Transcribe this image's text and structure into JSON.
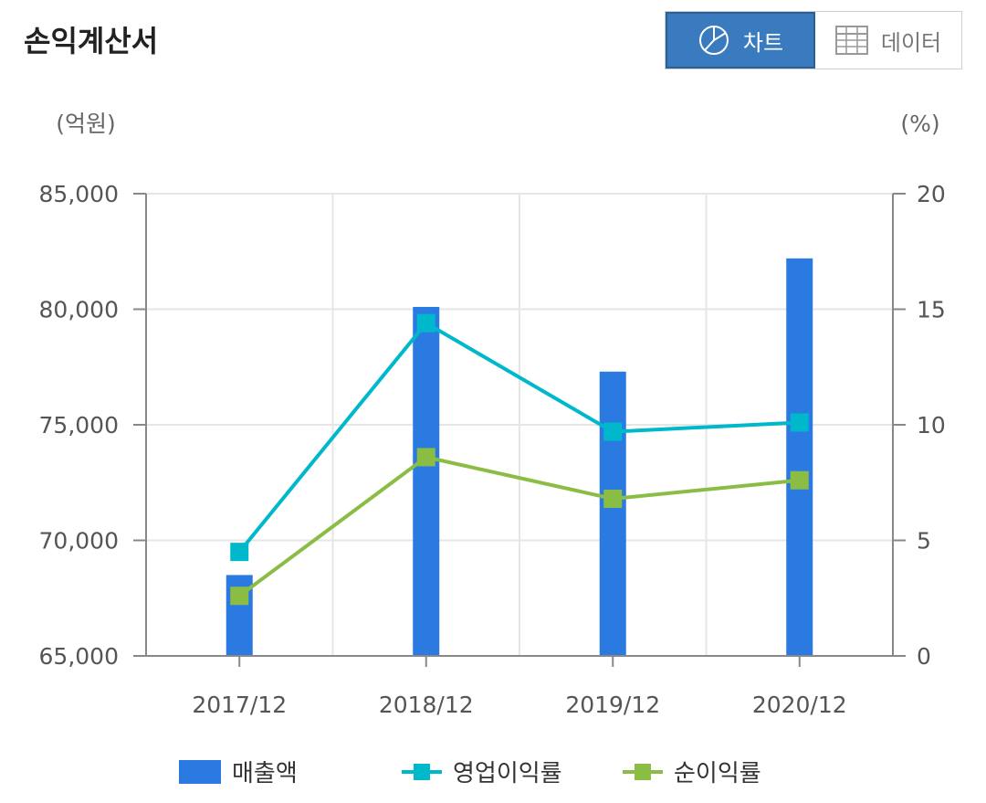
{
  "header": {
    "title": "손익계산서",
    "chart_button_label": "차트",
    "data_button_label": "데이터",
    "chart_icon": "pie-chart-icon",
    "data_icon": "table-icon",
    "active_color": "#3a7bbf"
  },
  "chart_data": {
    "type": "bar",
    "categories": [
      "2017/12",
      "2018/12",
      "2019/12",
      "2020/12"
    ],
    "y_left_label": "(억원)",
    "y_right_label": "(%)",
    "ylim_left": [
      65000,
      85000
    ],
    "ylim_right": [
      0,
      20
    ],
    "y_left_ticks": [
      "65,000",
      "70,000",
      "75,000",
      "80,000",
      "85,000"
    ],
    "y_right_ticks": [
      "0",
      "5",
      "10",
      "15",
      "20"
    ],
    "grid": true,
    "legend_position": "bottom",
    "series": [
      {
        "name": "매출액",
        "type": "bar",
        "axis": "left",
        "color": "#2a7ae2",
        "values": [
          68500,
          80100,
          77300,
          82200
        ]
      },
      {
        "name": "영업이익률",
        "type": "line",
        "axis": "right",
        "color": "#00b8cc",
        "values": [
          4.5,
          14.4,
          9.7,
          10.1
        ]
      },
      {
        "name": "순이익률",
        "type": "line",
        "axis": "right",
        "color": "#8bbd45",
        "values": [
          2.6,
          8.6,
          6.8,
          7.6
        ]
      }
    ]
  }
}
